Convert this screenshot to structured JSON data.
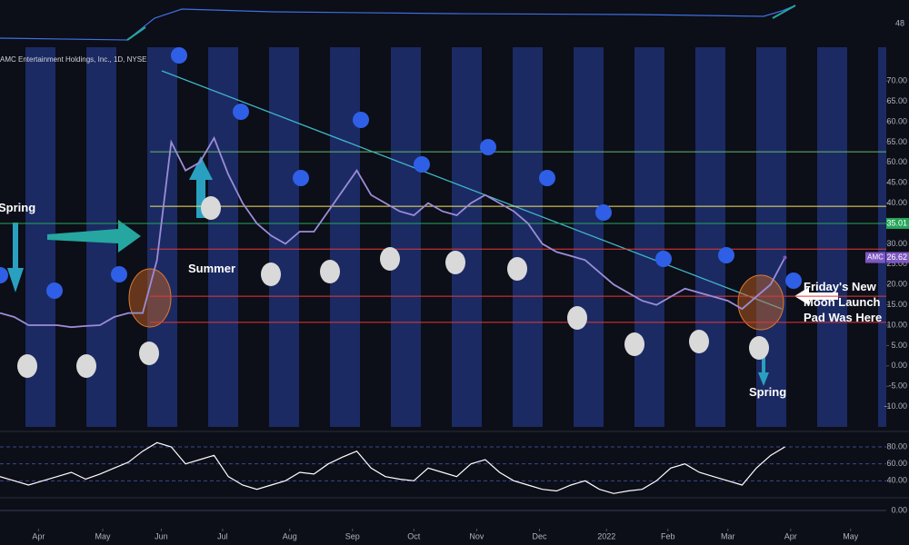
{
  "chart_data": {
    "type": "line",
    "title": "AMC Entertainment Holdings, Inc., 1D, NYSE",
    "top_label": "48",
    "xlim": [
      0,
      62.1
    ],
    "xticks": [
      {
        "value": 2.7,
        "label": "Apr"
      },
      {
        "value": 7.2,
        "label": "May"
      },
      {
        "value": 11.3,
        "label": "Jun"
      },
      {
        "value": 15.6,
        "label": "Jul"
      },
      {
        "value": 20.3,
        "label": "Aug"
      },
      {
        "value": 24.7,
        "label": "Sep"
      },
      {
        "value": 29.0,
        "label": "Oct"
      },
      {
        "value": 33.4,
        "label": "Nov"
      },
      {
        "value": 37.8,
        "label": "Dec"
      },
      {
        "value": 42.5,
        "label": "2022"
      },
      {
        "value": 46.8,
        "label": "Feb"
      },
      {
        "value": 51.0,
        "label": "Mar"
      },
      {
        "value": 55.4,
        "label": "Apr"
      },
      {
        "value": 59.6,
        "label": "May"
      }
    ],
    "ylim": [
      -15,
      78.3
    ],
    "yticks": [
      {
        "value": 70,
        "label": "70.00"
      },
      {
        "value": 65,
        "label": "65.00"
      },
      {
        "value": 60,
        "label": "60.00"
      },
      {
        "value": 55,
        "label": "55.00"
      },
      {
        "value": 50,
        "label": "50.00"
      },
      {
        "value": 45,
        "label": "45.00"
      },
      {
        "value": 40,
        "label": "40.00"
      },
      {
        "value": 30,
        "label": "30.00"
      },
      {
        "value": 25,
        "label": "25.00"
      },
      {
        "value": 20,
        "label": "20.00"
      },
      {
        "value": 15,
        "label": "15.00"
      },
      {
        "value": 10,
        "label": "10.00"
      },
      {
        "value": 5,
        "label": "5.00"
      },
      {
        "value": 0,
        "label": "0.00"
      },
      {
        "value": -5,
        "label": "-5.00"
      },
      {
        "value": -10,
        "label": "-10.00"
      }
    ],
    "series": [
      {
        "name": "AMC",
        "color": "#9c8cd8",
        "values": [
          13,
          12,
          10,
          10,
          10,
          9.5,
          9.8,
          10,
          12,
          13,
          13,
          26,
          55,
          48,
          50,
          56,
          47,
          40,
          35,
          32,
          30,
          33,
          33,
          38,
          43,
          48,
          42,
          40,
          38,
          37,
          40,
          38,
          37,
          40,
          42,
          40,
          38,
          35,
          30,
          28,
          27,
          26,
          23,
          20,
          18,
          16,
          15,
          17,
          19,
          18,
          17,
          16,
          14,
          17,
          20,
          26.62
        ]
      }
    ],
    "price_tag": {
      "name": "AMC",
      "value": 26.62,
      "color": "#7e57c2"
    },
    "level_tag": {
      "value": 35.01,
      "color": "#26a65b"
    },
    "levels": [
      {
        "value": 52.6,
        "color": "#66bb6a"
      },
      {
        "value": 39.2,
        "color": "#f5e663"
      },
      {
        "value": 28.7,
        "color": "#e53935"
      },
      {
        "value": 17.1,
        "color": "#e53935"
      },
      {
        "value": 10.7,
        "color": "#e53935"
      }
    ],
    "annotations": [
      "Spring",
      "Summer",
      "Spring",
      "Friday's New Moon Launch Pad Was Here"
    ],
    "rsi": {
      "ylim": [
        20,
        95
      ],
      "color": "#ffffff",
      "yticks": [
        {
          "value": 80,
          "label": "80.00"
        },
        {
          "value": 60,
          "label": "60.00"
        },
        {
          "value": 40,
          "label": "40.00"
        }
      ],
      "values": [
        45,
        40,
        35,
        40,
        45,
        50,
        42,
        48,
        55,
        62,
        75,
        85,
        80,
        60,
        65,
        70,
        45,
        35,
        30,
        35,
        40,
        50,
        48,
        60,
        68,
        75,
        55,
        45,
        42,
        40,
        55,
        50,
        45,
        60,
        65,
        50,
        40,
        35,
        30,
        28,
        35,
        40,
        30,
        25,
        28,
        30,
        40,
        55,
        60,
        50,
        45,
        40,
        35,
        55,
        70,
        80
      ]
    },
    "macd": {
      "yticks": [
        {
          "value": 0,
          "label": "0.00"
        }
      ]
    }
  }
}
